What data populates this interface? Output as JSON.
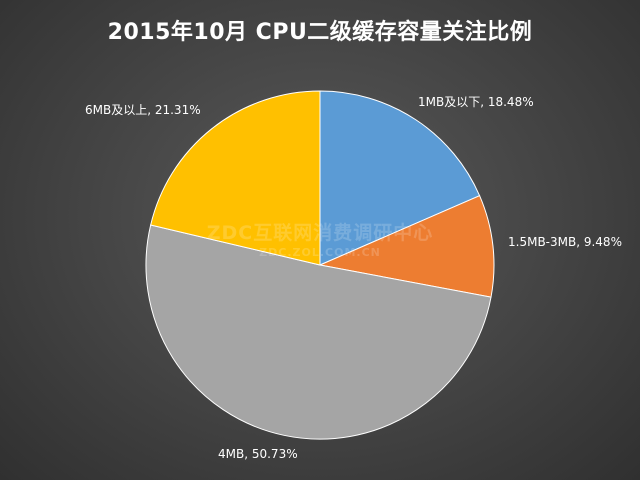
{
  "chart_data": {
    "type": "pie",
    "title": "2015年10月  CPU二级缓存容量关注比例",
    "slices": [
      {
        "label": "1MB及以下",
        "value": 18.48,
        "color": "#5b9bd5",
        "display": "1MB及以下, 18.48%"
      },
      {
        "label": "1.5MB-3MB",
        "value": 9.48,
        "color": "#ed7d31",
        "display": "1.5MB-3MB, 9.48%"
      },
      {
        "label": "4MB",
        "value": 50.73,
        "color": "#a5a5a5",
        "display": "4MB, 50.73%"
      },
      {
        "label": "6MB及以上",
        "value": 21.31,
        "color": "#ffc000",
        "display": "6MB及以上, 21.31%"
      }
    ],
    "legend": "none"
  },
  "watermark": {
    "main": "ZDC互联网消费调研中心",
    "sub": "ZDC.ZOL.COM.CN"
  }
}
